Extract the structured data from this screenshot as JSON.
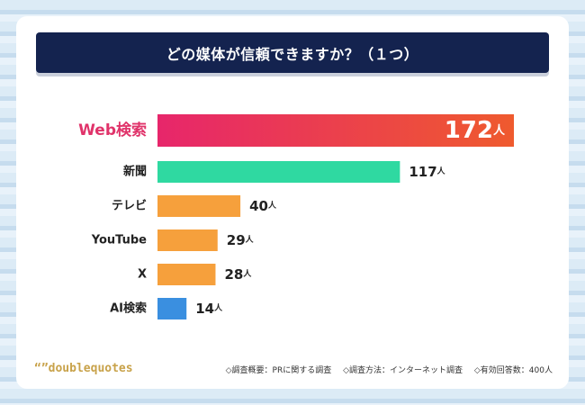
{
  "title": "どの媒体が信頼できますか？（１つ）",
  "footer": {
    "logo": "“”doublequotes",
    "notes": [
      "◇調査概要：PRに関する調査",
      "◇調査方法：インターネット調査",
      "◇有効回答数：400人"
    ]
  },
  "colors": {
    "title_bg": "#14234f",
    "top_bar_gradient": [
      "#e7266b",
      "#ef5a2e"
    ],
    "highlight_label": "#e0336a",
    "second": "#2fd9a1",
    "others": "#f6a03c",
    "ai": "#3a8fe0"
  },
  "chart_data": {
    "type": "bar",
    "orientation": "horizontal",
    "categories": [
      "Web検索",
      "新聞",
      "テレビ",
      "YouTube",
      "X",
      "AI検索"
    ],
    "values": [
      172,
      117,
      40,
      29,
      28,
      14
    ],
    "unit": "人",
    "xlim": [
      0,
      172
    ],
    "grid": false,
    "highlight": "Web検索"
  }
}
